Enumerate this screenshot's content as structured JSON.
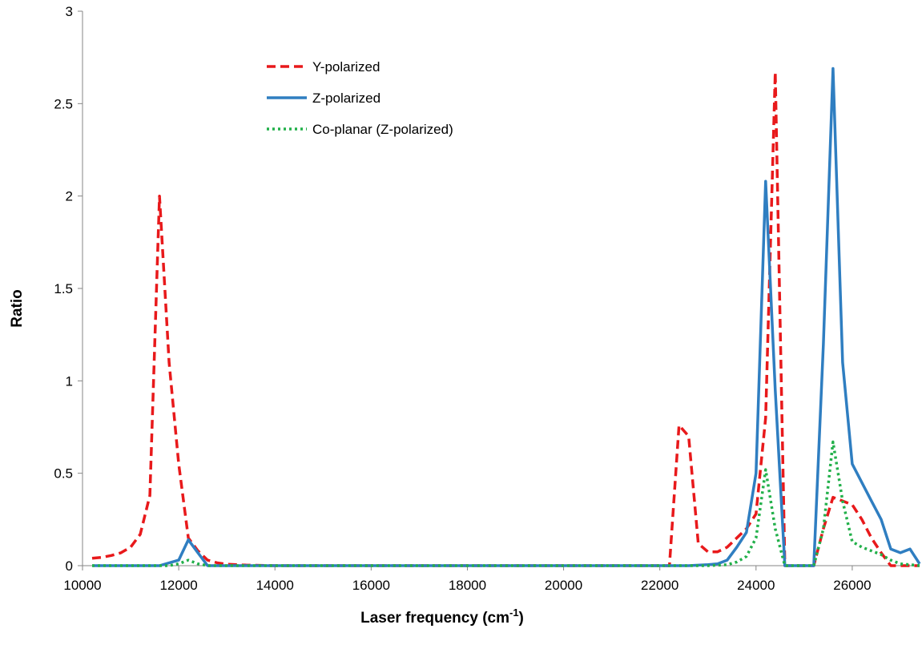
{
  "chart_data": {
    "type": "line",
    "title": "",
    "xlabel": "Laser frequency (cm",
    "xlabel_sup": "-1",
    "xlabel_close": ")",
    "ylabel": "Ratio",
    "xlim": [
      10000,
      27400
    ],
    "ylim": [
      0,
      3
    ],
    "x_ticks": [
      10000,
      12000,
      14000,
      16000,
      18000,
      20000,
      22000,
      24000,
      26000
    ],
    "y_ticks": [
      0,
      0.5,
      1,
      1.5,
      2,
      2.5,
      3
    ],
    "y_tick_labels": [
      "0",
      "0.5",
      "1",
      "1.5",
      "2",
      "2.5",
      "3"
    ],
    "grid": false,
    "legend_position": "top-center",
    "series": [
      {
        "name": "Y-polarized",
        "color": "#e8191b",
        "style": "dashed",
        "points": [
          [
            10200,
            0.04
          ],
          [
            10400,
            0.045
          ],
          [
            10600,
            0.055
          ],
          [
            10800,
            0.07
          ],
          [
            11000,
            0.1
          ],
          [
            11200,
            0.17
          ],
          [
            11400,
            0.38
          ],
          [
            11600,
            2.0
          ],
          [
            11800,
            1.1
          ],
          [
            12000,
            0.55
          ],
          [
            12200,
            0.15
          ],
          [
            12400,
            0.08
          ],
          [
            12600,
            0.03
          ],
          [
            12800,
            0.015
          ],
          [
            13000,
            0.008
          ],
          [
            13200,
            0.005
          ],
          [
            13400,
            0.003
          ],
          [
            13600,
            0.002
          ],
          [
            13800,
            0.001
          ],
          [
            14000,
            0.0
          ],
          [
            16000,
            0.0
          ],
          [
            18000,
            0.0
          ],
          [
            20000,
            0.0
          ],
          [
            22000,
            0.0
          ],
          [
            22200,
            0.0
          ],
          [
            22400,
            0.76
          ],
          [
            22600,
            0.7
          ],
          [
            22800,
            0.12
          ],
          [
            23000,
            0.075
          ],
          [
            23200,
            0.075
          ],
          [
            23400,
            0.1
          ],
          [
            23600,
            0.15
          ],
          [
            23800,
            0.2
          ],
          [
            24000,
            0.28
          ],
          [
            24200,
            0.8
          ],
          [
            24400,
            2.67
          ],
          [
            24600,
            0.0
          ],
          [
            25000,
            0.0
          ],
          [
            25200,
            0.0
          ],
          [
            25400,
            0.2
          ],
          [
            25600,
            0.37
          ],
          [
            25800,
            0.35
          ],
          [
            26000,
            0.33
          ],
          [
            26200,
            0.25
          ],
          [
            26400,
            0.15
          ],
          [
            26600,
            0.07
          ],
          [
            26800,
            0.0
          ],
          [
            27000,
            0.0
          ],
          [
            27200,
            0.0
          ],
          [
            27400,
            0.0
          ]
        ]
      },
      {
        "name": "Z-polarized",
        "color": "#2f7ec1",
        "style": "solid",
        "points": [
          [
            10200,
            0.0
          ],
          [
            11600,
            0.0
          ],
          [
            12000,
            0.03
          ],
          [
            12200,
            0.14
          ],
          [
            12400,
            0.07
          ],
          [
            12600,
            0.0
          ],
          [
            14000,
            0.0
          ],
          [
            16000,
            0.0
          ],
          [
            18000,
            0.0
          ],
          [
            20000,
            0.0
          ],
          [
            22000,
            0.0
          ],
          [
            22600,
            0.0
          ],
          [
            23000,
            0.005
          ],
          [
            23200,
            0.01
          ],
          [
            23400,
            0.03
          ],
          [
            23600,
            0.1
          ],
          [
            23800,
            0.18
          ],
          [
            24000,
            0.5
          ],
          [
            24200,
            2.08
          ],
          [
            24400,
            0.95
          ],
          [
            24600,
            0.0
          ],
          [
            25000,
            0.0
          ],
          [
            25200,
            0.0
          ],
          [
            25400,
            1.2
          ],
          [
            25600,
            2.69
          ],
          [
            25800,
            1.1
          ],
          [
            26000,
            0.55
          ],
          [
            26200,
            0.45
          ],
          [
            26400,
            0.35
          ],
          [
            26600,
            0.25
          ],
          [
            26800,
            0.09
          ],
          [
            27000,
            0.07
          ],
          [
            27200,
            0.09
          ],
          [
            27400,
            0.01
          ]
        ]
      },
      {
        "name": "Co-planar (Z-polarized)",
        "color": "#22b04a",
        "style": "dotted",
        "points": [
          [
            10200,
            0.0
          ],
          [
            11800,
            0.0
          ],
          [
            12000,
            0.01
          ],
          [
            12200,
            0.03
          ],
          [
            12400,
            0.01
          ],
          [
            12600,
            0.0
          ],
          [
            14000,
            0.0
          ],
          [
            16000,
            0.0
          ],
          [
            18000,
            0.0
          ],
          [
            20000,
            0.0
          ],
          [
            22000,
            0.0
          ],
          [
            23000,
            0.0
          ],
          [
            23400,
            0.005
          ],
          [
            23600,
            0.02
          ],
          [
            23800,
            0.05
          ],
          [
            24000,
            0.15
          ],
          [
            24200,
            0.52
          ],
          [
            24400,
            0.2
          ],
          [
            24600,
            0.0
          ],
          [
            25000,
            0.0
          ],
          [
            25200,
            0.0
          ],
          [
            25400,
            0.2
          ],
          [
            25600,
            0.67
          ],
          [
            25800,
            0.35
          ],
          [
            26000,
            0.13
          ],
          [
            26200,
            0.1
          ],
          [
            26400,
            0.08
          ],
          [
            26600,
            0.06
          ],
          [
            26800,
            0.03
          ],
          [
            27000,
            0.01
          ],
          [
            27200,
            0.005
          ],
          [
            27400,
            0.0
          ]
        ]
      }
    ]
  }
}
